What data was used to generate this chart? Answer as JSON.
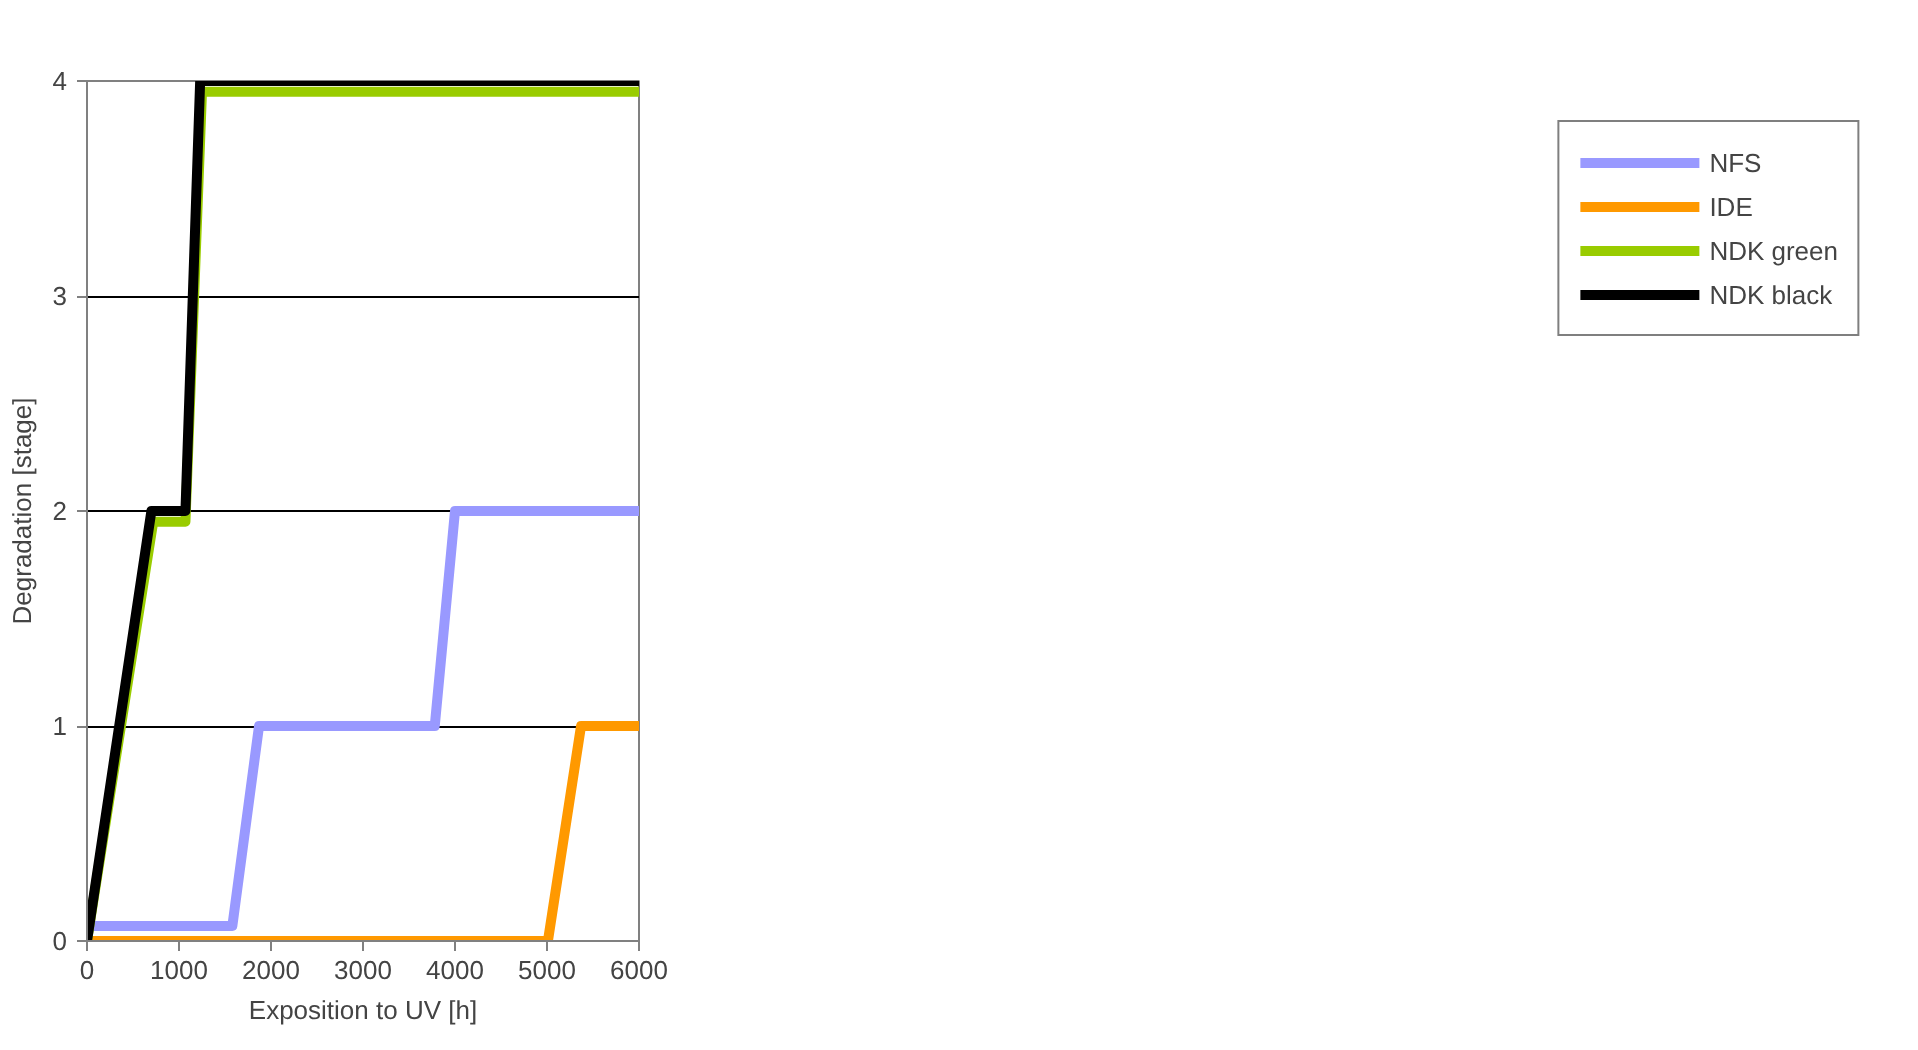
{
  "chart_data": {
    "type": "line",
    "xlabel": "Exposition to UV [h]",
    "ylabel": "Degradation [stage]",
    "xlim": [
      0,
      6000
    ],
    "xticks": [
      0,
      1000,
      2000,
      3000,
      4000,
      5000,
      6000
    ],
    "ylim": [
      0,
      4
    ],
    "yticks": [
      0,
      1,
      2,
      3,
      4
    ],
    "grid": "y",
    "legend": "right",
    "series": [
      {
        "name": "NFS",
        "color": "#9999ff",
        "x": [
          0,
          1580,
          1870,
          3780,
          4000,
          6000
        ],
        "values": [
          0.07,
          0.07,
          1,
          1,
          2,
          2
        ]
      },
      {
        "name": "IDE",
        "color": "#ff9900",
        "x": [
          0,
          5010,
          5370,
          6000
        ],
        "values": [
          0,
          0,
          1,
          1
        ]
      },
      {
        "name": "NDK green",
        "color": "#99cc00",
        "x": [
          0,
          720,
          1070,
          1250,
          6000
        ],
        "values": [
          0,
          1.95,
          1.95,
          3.95,
          3.95
        ]
      },
      {
        "name": "NDK black",
        "color": "#000000",
        "x": [
          0,
          700,
          1070,
          1230,
          6000
        ],
        "values": [
          0,
          2,
          2,
          4,
          4
        ]
      }
    ]
  }
}
